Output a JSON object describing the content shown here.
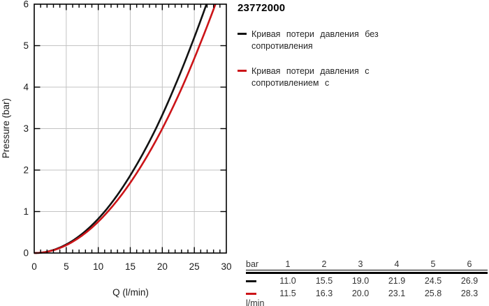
{
  "product_code": "23772000",
  "legend": {
    "items": [
      {
        "color": "#121212",
        "lines": [
          "Кривая потери давления без",
          "сопротивления"
        ]
      },
      {
        "color": "#cc1418",
        "lines": [
          "Кривая потери давления с",
          "сопротивлением с"
        ]
      }
    ]
  },
  "chart_data": {
    "type": "line",
    "title": "23772000",
    "xlabel": "Q (l/min)",
    "ylabel": "Pressure (bar)",
    "xlim": [
      0,
      30
    ],
    "ylim": [
      0,
      6
    ],
    "x_major_step": 5,
    "x_minor_step": 1,
    "y_major_step": 1,
    "grid": true,
    "grid_color": "#c3c3c3",
    "frame_color": "#000000",
    "pressure_bar": [
      1,
      2,
      3,
      4,
      5,
      6
    ],
    "series": [
      {
        "name": "Кривая потери давления без сопротивления",
        "color": "#121212",
        "flow_l_min": [
          11.0,
          15.5,
          19.0,
          21.9,
          24.5,
          26.9
        ]
      },
      {
        "name": "Кривая потери давления с сопротивлением с",
        "color": "#cc1418",
        "flow_l_min": [
          11.5,
          16.3,
          20.0,
          23.1,
          25.8,
          28.3
        ]
      }
    ]
  },
  "table": {
    "header": [
      "bar",
      "1",
      "2",
      "3",
      "4",
      "5",
      "6"
    ],
    "rows": [
      {
        "swatch": "#121212",
        "values": [
          "11.0",
          "15.5",
          "19.0",
          "21.9",
          "24.5",
          "26.9"
        ]
      },
      {
        "swatch": "#cc1418",
        "values": [
          "11.5",
          "16.3",
          "20.0",
          "23.1",
          "25.8",
          "28.3"
        ]
      }
    ],
    "unit_label": "l/min"
  }
}
